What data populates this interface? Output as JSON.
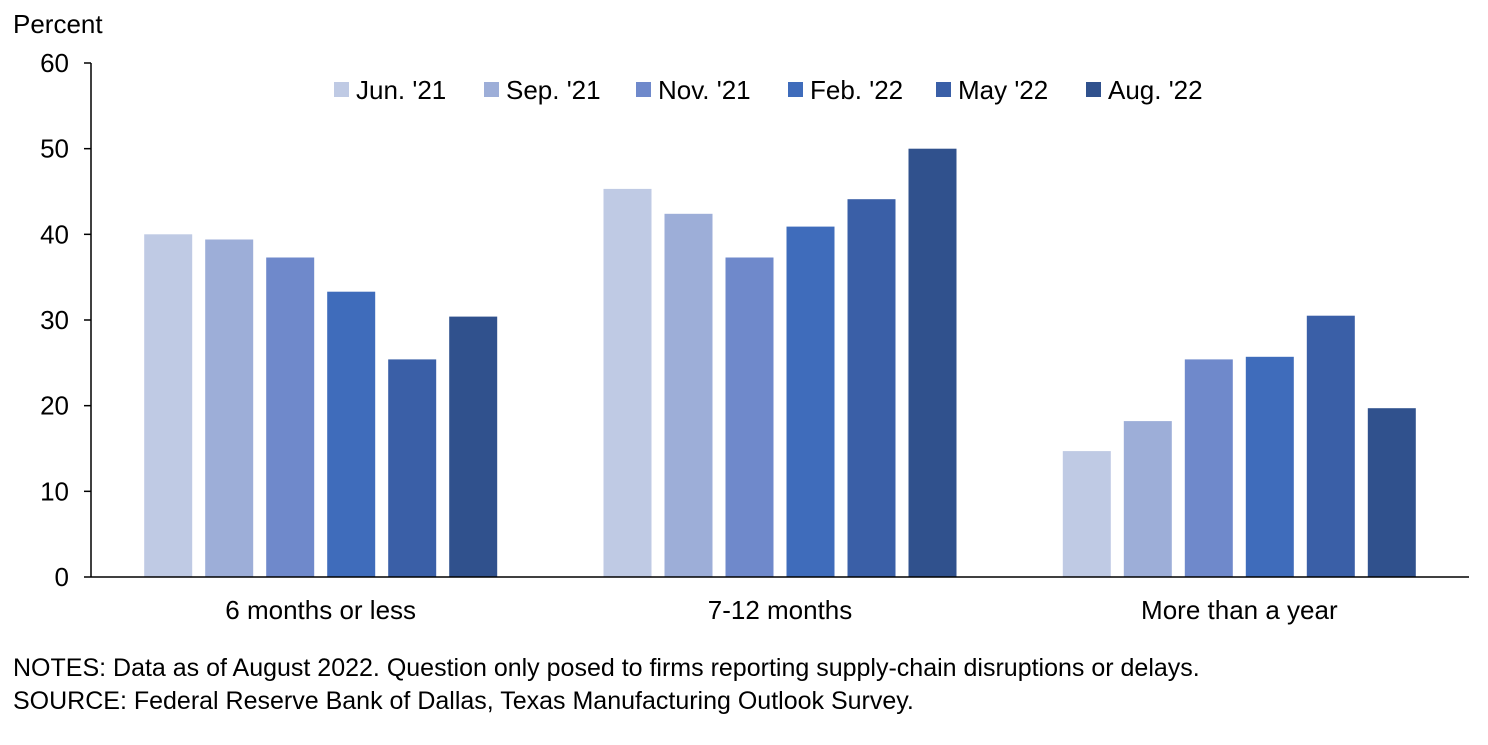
{
  "chart_data": {
    "type": "bar",
    "ylabel": "Percent",
    "ylim": [
      0,
      60
    ],
    "yticks": [
      0,
      10,
      20,
      30,
      40,
      50,
      60
    ],
    "categories": [
      "6 months or less",
      "7-12 months",
      "More than a year"
    ],
    "series": [
      {
        "name": "Jun. '21",
        "color": "#bfcae4",
        "values": [
          40.0,
          45.3,
          14.7
        ]
      },
      {
        "name": "Sep. '21",
        "color": "#9daed8",
        "values": [
          39.4,
          42.4,
          18.2
        ]
      },
      {
        "name": "Nov. '21",
        "color": "#6f89cb",
        "values": [
          37.3,
          37.3,
          25.4
        ]
      },
      {
        "name": "Feb. '22",
        "color": "#3f6cbb",
        "values": [
          33.3,
          40.9,
          25.7
        ]
      },
      {
        "name": "May '22",
        "color": "#3a5fa7",
        "values": [
          25.4,
          44.1,
          30.5
        ]
      },
      {
        "name": "Aug. '22",
        "color": "#30518d",
        "values": [
          30.4,
          50.0,
          19.7
        ]
      }
    ],
    "legend_position": "top",
    "grid": false
  },
  "notes": {
    "line1": "NOTES: Data as of August 2022. Question only posed to firms reporting supply-chain disruptions or delays.",
    "line2": "SOURCE: Federal Reserve Bank of Dallas, Texas Manufacturing Outlook Survey."
  }
}
